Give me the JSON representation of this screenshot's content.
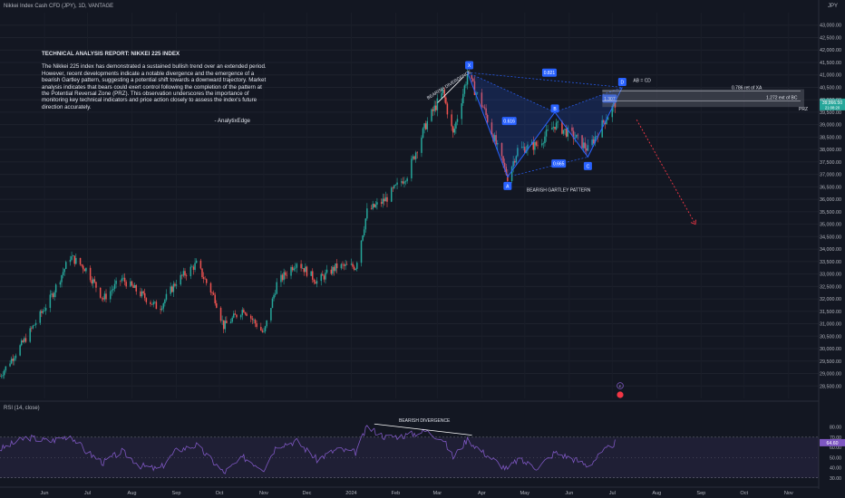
{
  "header": {
    "symbol": "Nikkei Index Cash CFD (JPY), 1D, VANTAGE",
    "currency": "JPY"
  },
  "report": {
    "title": "TECHNICAL ANALYSIS REPORT: NIKKEI 225 INDEX",
    "body": "The Nikkei 225 index has demonstrated a sustained bullish trend over an extended period. However, recent developments indicate a notable divergence and the emergence of a bearish Gartley pattern, suggesting a potential shift towards a downward trajectory. Market analysis indicates that bears could exert control following the completion of the pattern at the Potential Reversal Zone (PRZ). This observation underscores the importance of monitoring key technical indicators and price action closely to assess the index's future direction accurately.",
    "signature": "- AnalytixEdge"
  },
  "annotations": {
    "divergence_price": "BEARISH DIVERGENCE",
    "divergence_rsi": "BEARISH DIVERGENCE",
    "pattern": "BEARISH GARTLEY PATTERN",
    "ab_cd": "AB = CD",
    "ret_xa": "0.786 ret of XA",
    "ext_bc": "1.272 ext of BC",
    "prz": "PRZ",
    "points": {
      "X": "X",
      "A": "A",
      "B": "B",
      "C": "C",
      "D": "D"
    },
    "ratios": {
      "xd": "0.821",
      "ab": "0.616",
      "bc": "0.665",
      "cd": "1.307"
    },
    "price_tag": "39,866.50",
    "price_tag_sub": "21:08:20",
    "rsi_tag": "64.60",
    "event_flag": "E"
  },
  "colors": {
    "bg": "#131722",
    "up": "#26a69a",
    "down": "#ef5350",
    "pattern": "#2962ff",
    "rsi": "#7e57c2",
    "arrow": "#f23645",
    "text": "#d1d4dc"
  },
  "chart_data": {
    "type": "candlestick",
    "title": "",
    "xlabel": "",
    "ylabel": "",
    "ylim": [
      28000,
      43500
    ],
    "y_ticks": [
      28500,
      29000,
      29500,
      30000,
      30500,
      31000,
      31500,
      32000,
      32500,
      33000,
      33500,
      34000,
      34500,
      35000,
      35500,
      36000,
      36500,
      37000,
      37500,
      38000,
      38500,
      39000,
      39500,
      40000,
      40500,
      41000,
      41500,
      42000,
      42500,
      43000
    ],
    "y_tick_labels": [
      "28,500.00",
      "29,000.00",
      "29,500.00",
      "30,000.00",
      "30,500.00",
      "31,000.00",
      "31,500.00",
      "32,000.00",
      "32,500.00",
      "33,000.00",
      "33,500.00",
      "34,000.00",
      "34,500.00",
      "35,000.00",
      "35,500.00",
      "36,000.00",
      "36,500.00",
      "37,000.00",
      "37,500.00",
      "38,000.00",
      "38,500.00",
      "39,000.00",
      "39,500.00",
      "40,000.00",
      "40,500.00",
      "41,000.00",
      "41,500.00",
      "42,000.00",
      "42,500.00",
      "43,000.00"
    ],
    "x_labels": [
      "Jun",
      "Jul",
      "Aug",
      "Sep",
      "Oct",
      "Nov",
      "Dec",
      "2024",
      "Feb",
      "Mar",
      "Apr",
      "May",
      "Jun",
      "Jul",
      "Aug",
      "Sep",
      "Oct",
      "Nov"
    ],
    "price_path": [
      [
        "2023-05-01",
        28900
      ],
      [
        "2023-05-20",
        30500
      ],
      [
        "2023-06-05",
        32000
      ],
      [
        "2023-06-19",
        33700
      ],
      [
        "2023-06-30",
        33200
      ],
      [
        "2023-07-12",
        32000
      ],
      [
        "2023-07-25",
        32800
      ],
      [
        "2023-08-07",
        32200
      ],
      [
        "2023-08-20",
        31600
      ],
      [
        "2023-09-01",
        32700
      ],
      [
        "2023-09-15",
        33400
      ],
      [
        "2023-09-28",
        32000
      ],
      [
        "2023-10-04",
        30900
      ],
      [
        "2023-10-18",
        31600
      ],
      [
        "2023-11-01",
        30600
      ],
      [
        "2023-11-10",
        32600
      ],
      [
        "2023-11-24",
        33500
      ],
      [
        "2023-12-08",
        32700
      ],
      [
        "2023-12-22",
        33300
      ],
      [
        "2024-01-04",
        33300
      ],
      [
        "2024-01-12",
        35500
      ],
      [
        "2024-01-25",
        36000
      ],
      [
        "2024-02-09",
        37000
      ],
      [
        "2024-02-22",
        39000
      ],
      [
        "2024-03-05",
        40300
      ],
      [
        "2024-03-12",
        38600
      ],
      [
        "2024-03-22",
        41000
      ],
      [
        "2024-04-02",
        39700
      ],
      [
        "2024-04-19",
        36900
      ],
      [
        "2024-04-26",
        38000
      ],
      [
        "2024-05-10",
        38200
      ],
      [
        "2024-05-22",
        39000
      ],
      [
        "2024-06-05",
        38500
      ],
      [
        "2024-06-14",
        38000
      ],
      [
        "2024-06-27",
        39300
      ],
      [
        "2024-07-03",
        39866
      ]
    ],
    "pattern": {
      "X": {
        "date": "2024-03-22",
        "price": 41100
      },
      "A": {
        "date": "2024-04-19",
        "price": 36900
      },
      "B": {
        "date": "2024-05-22",
        "price": 39500
      },
      "C": {
        "date": "2024-06-14",
        "price": 37700
      },
      "D": {
        "date": "2024-07-08",
        "price": 40500
      }
    },
    "prz": {
      "top": 40280,
      "bottom": 40000
    },
    "ret_xa_level": 40350,
    "ext_bc_level": 40100,
    "projection": {
      "from": {
        "date": "2024-07-18",
        "price": 39200
      },
      "to": {
        "date": "2024-08-28",
        "price": 35000
      }
    },
    "rsi": {
      "label": "RSI (14, close)",
      "ylim": [
        28,
        85
      ],
      "y_ticks": [
        30,
        40,
        50,
        60,
        70,
        80
      ],
      "y_tick_labels": [
        "30.00",
        "40.00",
        "50.00",
        "60.00",
        "70.00",
        "80.00"
      ],
      "band": [
        30,
        70
      ],
      "last": 64.6,
      "path": [
        [
          "2023-05-01",
          58
        ],
        [
          "2023-05-20",
          70
        ],
        [
          "2023-06-05",
          66
        ],
        [
          "2023-06-19",
          72
        ],
        [
          "2023-06-30",
          56
        ],
        [
          "2023-07-12",
          45
        ],
        [
          "2023-07-25",
          56
        ],
        [
          "2023-08-07",
          42
        ],
        [
          "2023-08-20",
          38
        ],
        [
          "2023-09-01",
          57
        ],
        [
          "2023-09-15",
          62
        ],
        [
          "2023-09-28",
          44
        ],
        [
          "2023-10-04",
          35
        ],
        [
          "2023-10-18",
          50
        ],
        [
          "2023-11-01",
          39
        ],
        [
          "2023-11-10",
          62
        ],
        [
          "2023-11-24",
          66
        ],
        [
          "2023-12-08",
          48
        ],
        [
          "2023-12-22",
          58
        ],
        [
          "2024-01-04",
          55
        ],
        [
          "2024-01-12",
          80
        ],
        [
          "2024-01-25",
          70
        ],
        [
          "2024-02-09",
          72
        ],
        [
          "2024-02-22",
          76
        ],
        [
          "2024-03-05",
          68
        ],
        [
          "2024-03-12",
          50
        ],
        [
          "2024-03-22",
          68
        ],
        [
          "2024-04-02",
          55
        ],
        [
          "2024-04-19",
          38
        ],
        [
          "2024-04-26",
          48
        ],
        [
          "2024-05-10",
          40
        ],
        [
          "2024-05-22",
          55
        ],
        [
          "2024-06-05",
          48
        ],
        [
          "2024-06-14",
          42
        ],
        [
          "2024-06-27",
          58
        ],
        [
          "2024-07-03",
          64.6
        ]
      ]
    }
  }
}
